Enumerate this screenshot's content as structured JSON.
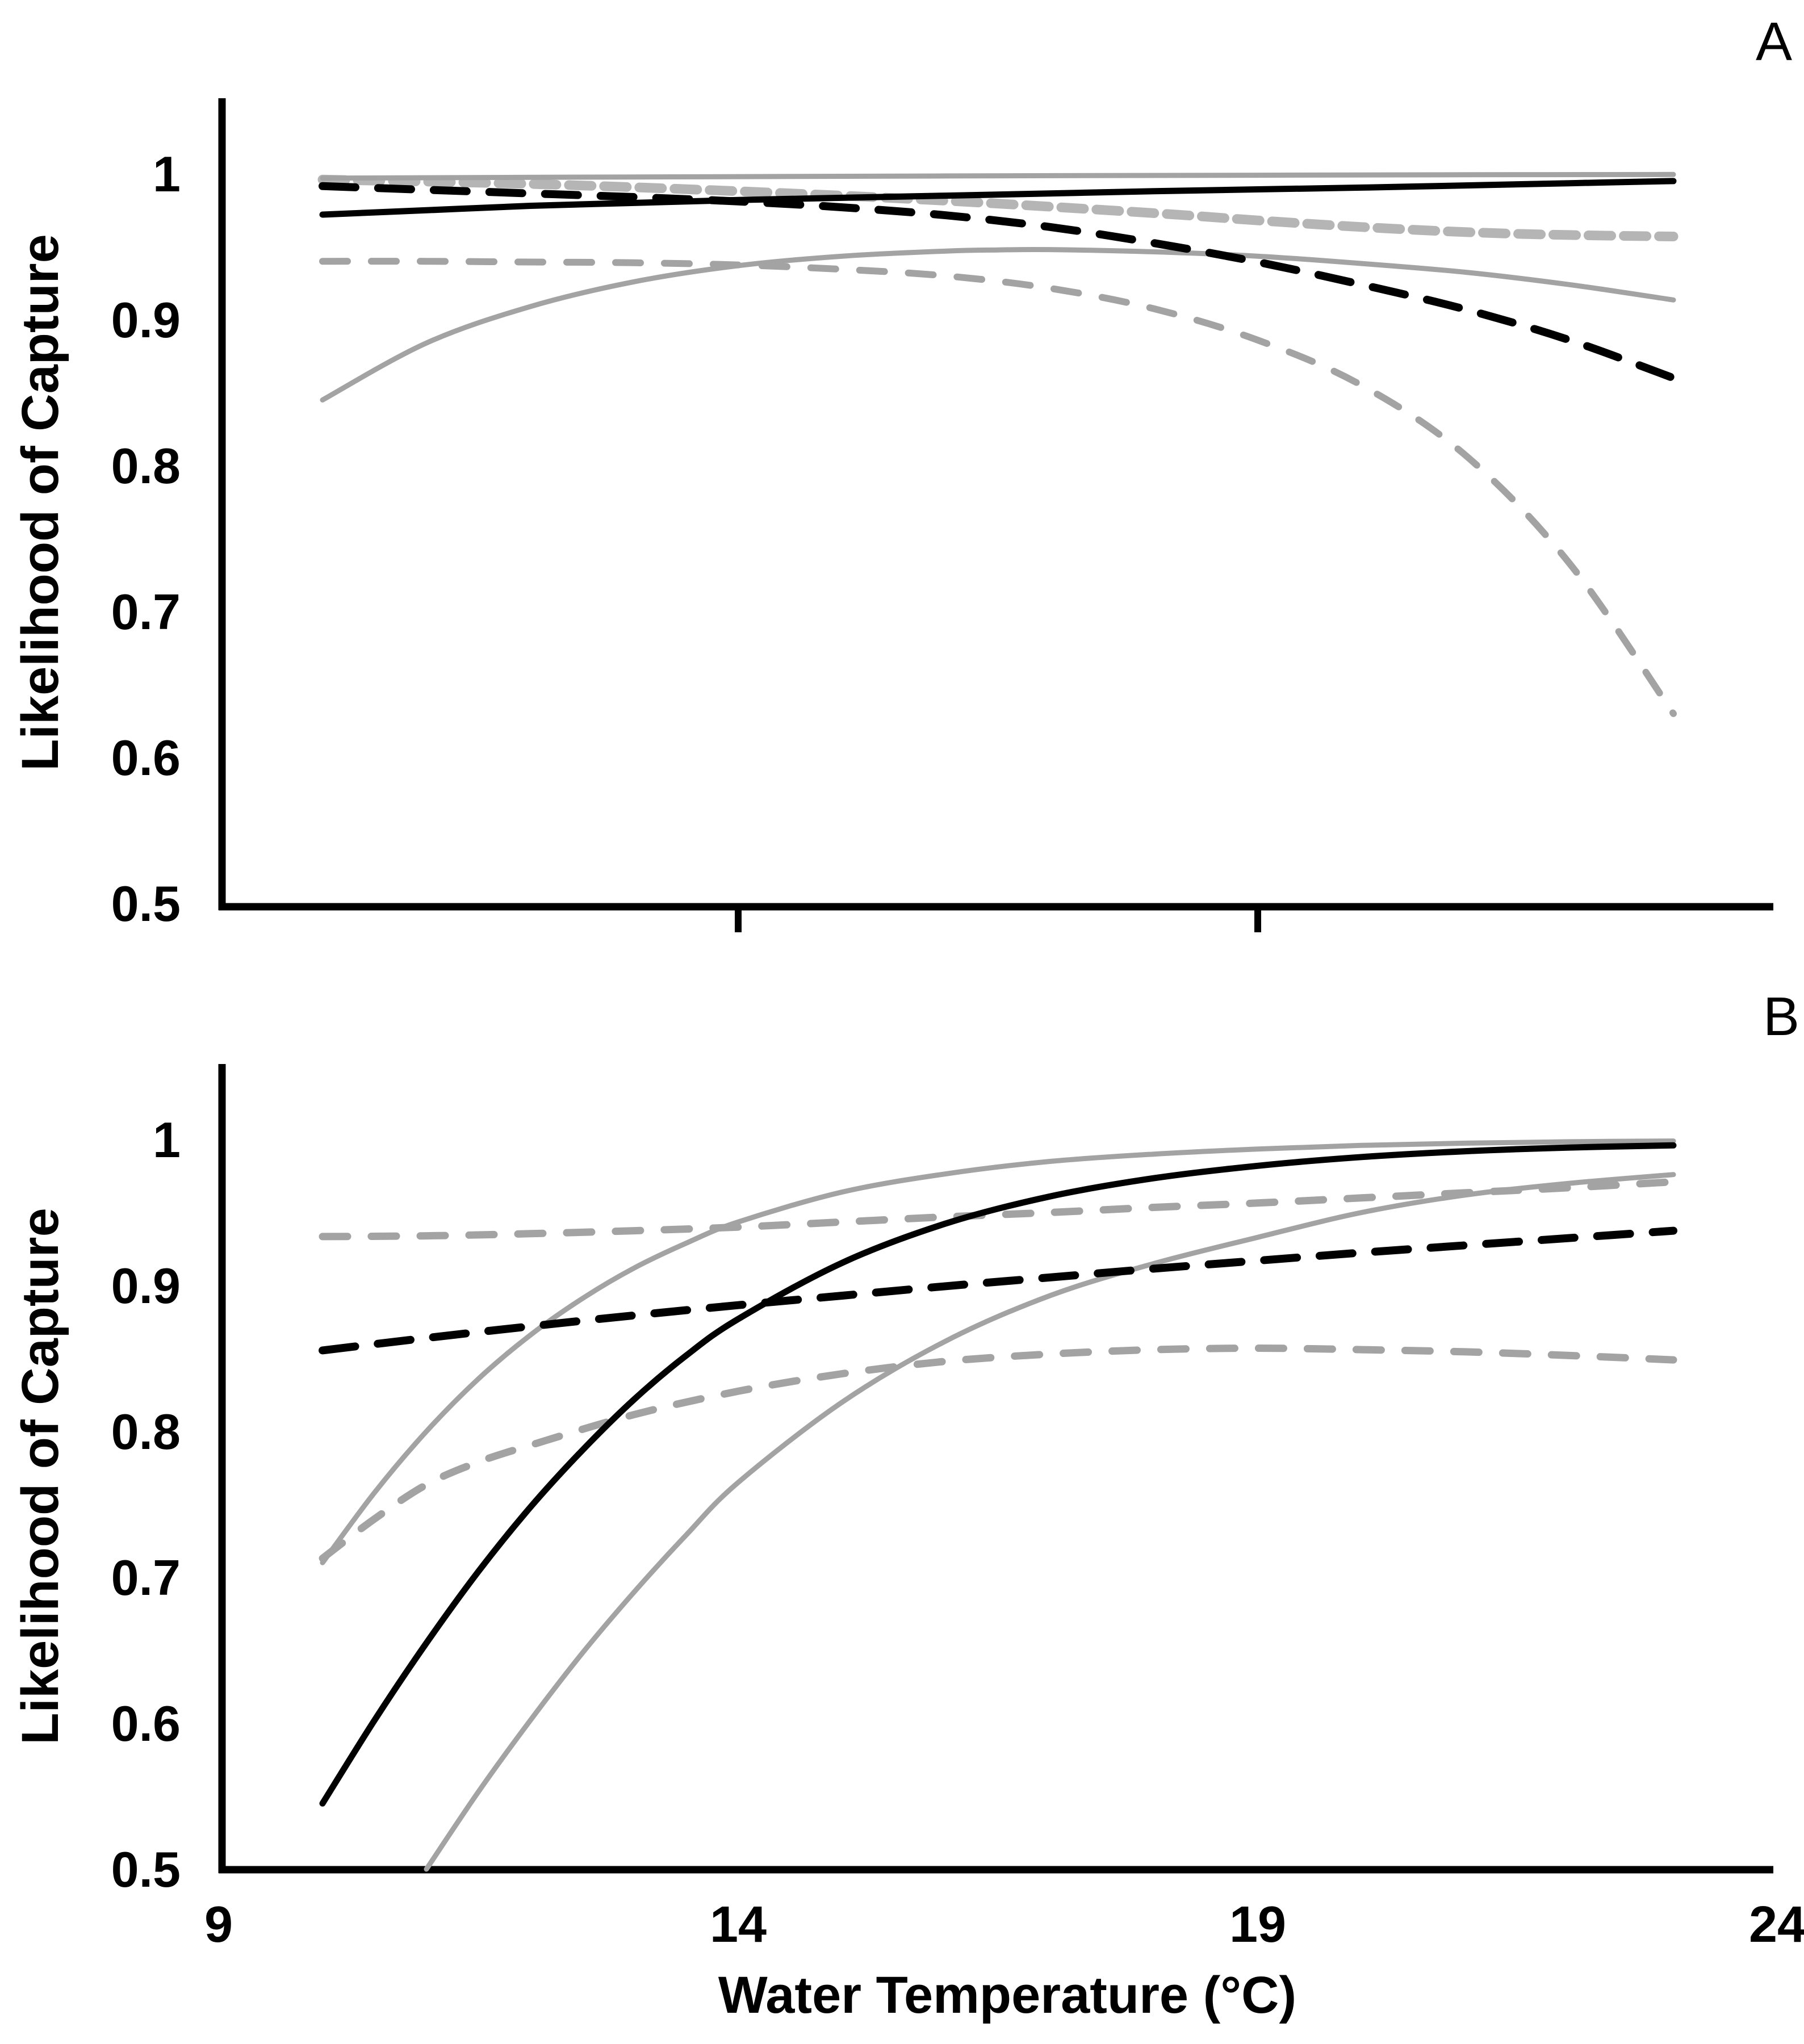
{
  "figure": {
    "panel_a_label": "A",
    "panel_b_label": "B",
    "y_axis_title": "Likelihood of Capture",
    "x_axis_title": "Water Temperature (°C)",
    "background_color": "#ffffff",
    "black_color": "#000000",
    "gray_color": "#a3a3a3"
  },
  "chart_data": [
    {
      "type": "line",
      "panel": "A",
      "xlabel": "Water Temperature (°C)",
      "ylabel": "Likelihood of Capture",
      "xlim": [
        9,
        24
      ],
      "ylim": [
        0.5,
        1.05
      ],
      "grid": false,
      "legend": "none",
      "xticks": [],
      "xtick_marks": [
        14,
        19
      ],
      "yticks": [
        {
          "label": "1",
          "value": 1.0
        },
        {
          "label": "0.9",
          "value": 0.9
        },
        {
          "label": "0.8",
          "value": 0.8
        },
        {
          "label": "0.7",
          "value": 0.7
        },
        {
          "label": "0.6",
          "value": 0.6
        },
        {
          "label": "0.5",
          "value": 0.5
        }
      ],
      "series": [
        {
          "name": "gray-dashed-upper-ci",
          "color": "#b5b5b5",
          "line": "dashed",
          "stroke_width": 17,
          "dash": "40 22",
          "points": [
            [
              10,
              0.996
            ],
            [
              12,
              0.993
            ],
            [
              14,
              0.988
            ],
            [
              16,
              0.9815
            ],
            [
              18,
              0.973
            ],
            [
              19,
              0.968
            ],
            [
              20,
              0.9635
            ],
            [
              21,
              0.96
            ],
            [
              22,
              0.958
            ],
            [
              23,
              0.957
            ]
          ]
        },
        {
          "name": "gray-solid-upper-ci",
          "color": "#a3a3a3",
          "line": "solid",
          "stroke_width": 9,
          "dash": "",
          "points": [
            [
              10,
              0.997
            ],
            [
              13,
              0.9978
            ],
            [
              16,
              0.9985
            ],
            [
              19,
              0.999
            ],
            [
              21,
              0.9993
            ],
            [
              23,
              0.9995
            ]
          ]
        },
        {
          "name": "gray-dashed-lower-ci",
          "color": "#a3a3a3",
          "line": "dashed",
          "stroke_width": 12,
          "dash": "44 42",
          "points": [
            [
              10,
              0.94
            ],
            [
              11,
              0.94
            ],
            [
              12,
              0.9395
            ],
            [
              13,
              0.939
            ],
            [
              14,
              0.9375
            ],
            [
              15,
              0.9345
            ],
            [
              16,
              0.93
            ],
            [
              17,
              0.9215
            ],
            [
              18,
              0.9075
            ],
            [
              19,
              0.886
            ],
            [
              20,
              0.855
            ],
            [
              21,
              0.807
            ],
            [
              22,
              0.733
            ],
            [
              23,
              0.63
            ]
          ]
        },
        {
          "name": "gray-solid-lower-ci",
          "color": "#a3a3a3",
          "line": "solid",
          "stroke_width": 9,
          "dash": "",
          "points": [
            [
              10,
              0.845
            ],
            [
              11,
              0.884
            ],
            [
              12,
              0.909
            ],
            [
              13,
              0.926
            ],
            [
              14,
              0.937
            ],
            [
              15,
              0.9435
            ],
            [
              16,
              0.947
            ],
            [
              16.5,
              0.9478
            ],
            [
              17,
              0.948
            ],
            [
              18,
              0.9465
            ],
            [
              19,
              0.9435
            ],
            [
              20,
              0.9385
            ],
            [
              21,
              0.9325
            ],
            [
              22,
              0.924
            ],
            [
              23,
              0.9135
            ]
          ]
        },
        {
          "name": "black-dashed-mean",
          "color": "#000000",
          "line": "dashed",
          "stroke_width": 14,
          "dash": "58 40",
          "points": [
            [
              10,
              0.9915
            ],
            [
              11,
              0.989
            ],
            [
              12,
              0.9865
            ],
            [
              13,
              0.984
            ],
            [
              14,
              0.981
            ],
            [
              15,
              0.977
            ],
            [
              16,
              0.9715
            ],
            [
              17,
              0.9635
            ],
            [
              18,
              0.9525
            ],
            [
              19,
              0.9395
            ],
            [
              20,
              0.924
            ],
            [
              21,
              0.907
            ],
            [
              22,
              0.886
            ],
            [
              23,
              0.86
            ]
          ]
        },
        {
          "name": "black-solid-mean",
          "color": "#000000",
          "line": "solid",
          "stroke_width": 11,
          "dash": "",
          "points": [
            [
              10,
              0.972
            ],
            [
              11,
              0.975
            ],
            [
              12,
              0.978
            ],
            [
              13,
              0.98
            ],
            [
              14,
              0.982
            ],
            [
              15,
              0.9835
            ],
            [
              16,
              0.985
            ],
            [
              17,
              0.9865
            ],
            [
              18,
              0.988
            ],
            [
              19,
              0.9893
            ],
            [
              20,
              0.9905
            ],
            [
              21,
              0.992
            ],
            [
              22,
              0.9935
            ],
            [
              23,
              0.995
            ]
          ]
        }
      ]
    },
    {
      "type": "line",
      "panel": "B",
      "xlabel": "Water Temperature (°C)",
      "ylabel": "Likelihood of Capture",
      "xlim": [
        9,
        24
      ],
      "ylim": [
        0.5,
        1.05
      ],
      "grid": false,
      "legend": "none",
      "xticks": [
        {
          "label": "9",
          "value": 9
        },
        {
          "label": "14",
          "value": 14
        },
        {
          "label": "19",
          "value": 19
        },
        {
          "label": "24",
          "value": 24
        }
      ],
      "xtick_marks": [],
      "yticks": [
        {
          "label": "1",
          "value": 1.0
        },
        {
          "label": "0.9",
          "value": 0.9
        },
        {
          "label": "0.8",
          "value": 0.8
        },
        {
          "label": "0.7",
          "value": 0.7
        },
        {
          "label": "0.6",
          "value": 0.6
        },
        {
          "label": "0.5",
          "value": 0.5
        }
      ],
      "series": [
        {
          "name": "gray-dashed-upper-ci",
          "color": "#a3a3a3",
          "line": "dashed",
          "stroke_width": 13,
          "dash": "44 42",
          "points": [
            [
              10,
              0.9335
            ],
            [
              11,
              0.934
            ],
            [
              12,
              0.9355
            ],
            [
              13,
              0.9375
            ],
            [
              14,
              0.94
            ],
            [
              15,
              0.9435
            ],
            [
              16,
              0.947
            ],
            [
              17,
              0.95
            ],
            [
              18,
              0.9535
            ],
            [
              19,
              0.9565
            ],
            [
              20,
              0.96
            ],
            [
              21,
              0.9635
            ],
            [
              22,
              0.967
            ],
            [
              23,
              0.971
            ]
          ]
        },
        {
          "name": "gray-dashed-lower-ci",
          "color": "#a3a3a3",
          "line": "dashed",
          "stroke_width": 13,
          "dash": "44 42",
          "points": [
            [
              10,
              0.713
            ],
            [
              10.5,
              0.74
            ],
            [
              11,
              0.7635
            ],
            [
              11.5,
              0.779
            ],
            [
              12,
              0.7905
            ],
            [
              13,
              0.8115
            ],
            [
              14,
              0.8275
            ],
            [
              15,
              0.8395
            ],
            [
              16,
              0.848
            ],
            [
              17,
              0.853
            ],
            [
              18,
              0.856
            ],
            [
              19,
              0.857
            ],
            [
              20,
              0.856
            ],
            [
              21,
              0.8545
            ],
            [
              22,
              0.852
            ],
            [
              23,
              0.849
            ]
          ]
        },
        {
          "name": "gray-solid-upper-ci",
          "color": "#a3a3a3",
          "line": "solid",
          "stroke_width": 9,
          "dash": "",
          "points": [
            [
              10,
              0.71
            ],
            [
              10.5,
              0.758
            ],
            [
              11,
              0.8
            ],
            [
              11.5,
              0.836
            ],
            [
              12,
              0.866
            ],
            [
              12.5,
              0.891
            ],
            [
              13,
              0.912
            ],
            [
              13.5,
              0.929
            ],
            [
              14,
              0.9435
            ],
            [
              15,
              0.964
            ],
            [
              16,
              0.9765
            ],
            [
              17,
              0.985
            ],
            [
              18,
              0.99
            ],
            [
              19,
              0.9935
            ],
            [
              20,
              0.996
            ],
            [
              21,
              0.9975
            ],
            [
              22,
              0.9985
            ],
            [
              23,
              0.999
            ]
          ]
        },
        {
          "name": "gray-solid-lower-ci",
          "color": "#a3a3a3",
          "line": "solid",
          "stroke_width": 9,
          "dash": "",
          "points": [
            [
              11,
              0.5
            ],
            [
              11.5,
              0.553
            ],
            [
              12,
              0.602
            ],
            [
              12.5,
              0.648
            ],
            [
              13,
              0.69
            ],
            [
              13.5,
              0.729
            ],
            [
              14,
              0.765
            ],
            [
              15,
              0.82
            ],
            [
              16,
              0.862
            ],
            [
              17,
              0.893
            ],
            [
              18,
              0.915
            ],
            [
              19,
              0.933
            ],
            [
              20,
              0.95
            ],
            [
              21,
              0.962
            ],
            [
              22,
              0.97
            ],
            [
              23,
              0.976
            ]
          ]
        },
        {
          "name": "black-dashed-mean",
          "color": "#000000",
          "line": "dashed",
          "stroke_width": 14,
          "dash": "58 40",
          "points": [
            [
              10,
              0.8555
            ],
            [
              11,
              0.864
            ],
            [
              12,
              0.872
            ],
            [
              13,
              0.8795
            ],
            [
              14,
              0.8865
            ],
            [
              15,
              0.893
            ],
            [
              16,
              0.8995
            ],
            [
              17,
              0.9055
            ],
            [
              18,
              0.9115
            ],
            [
              19,
              0.917
            ],
            [
              20,
              0.9225
            ],
            [
              21,
              0.9275
            ],
            [
              22,
              0.9325
            ],
            [
              23,
              0.9375
            ]
          ]
        },
        {
          "name": "black-solid-mean",
          "color": "#000000",
          "line": "solid",
          "stroke_width": 11,
          "dash": "",
          "points": [
            [
              10,
              0.545
            ],
            [
              10.5,
              0.602
            ],
            [
              11,
              0.655
            ],
            [
              11.5,
              0.704
            ],
            [
              12,
              0.748
            ],
            [
              12.5,
              0.787
            ],
            [
              13,
              0.822
            ],
            [
              13.5,
              0.852
            ],
            [
              14,
              0.877
            ],
            [
              15,
              0.9155
            ],
            [
              16,
              0.9425
            ],
            [
              17,
              0.961
            ],
            [
              18,
              0.9735
            ],
            [
              19,
              0.982
            ],
            [
              20,
              0.988
            ],
            [
              21,
              0.992
            ],
            [
              22,
              0.9945
            ],
            [
              23,
              0.996
            ]
          ]
        }
      ]
    }
  ]
}
